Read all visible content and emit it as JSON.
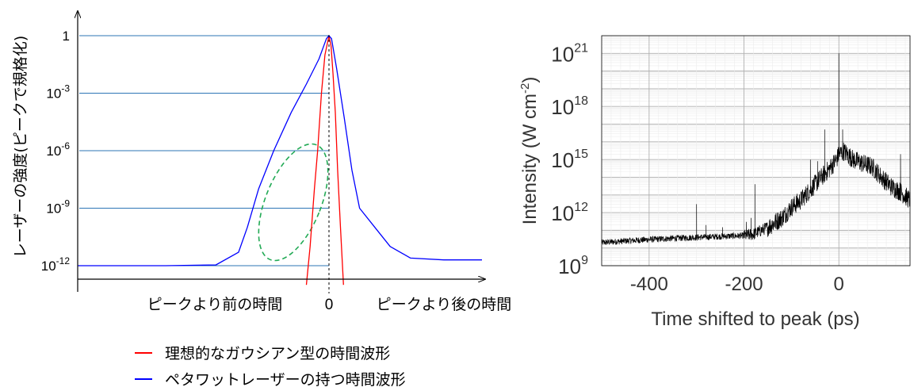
{
  "chart_data": [
    {
      "type": "line",
      "ylabel": "レーザーの強度(ピークで規格化)",
      "y_scale": "log",
      "ylim": [
        1e-13,
        10
      ],
      "xlim": [
        -1,
        0.6
      ],
      "y_ticks": [
        {
          "value": 1,
          "base": "1",
          "exp": ""
        },
        {
          "value": 0.001,
          "base": "10",
          "exp": "-3"
        },
        {
          "value": 1e-06,
          "base": "10",
          "exp": "-6"
        },
        {
          "value": 1e-09,
          "base": "10",
          "exp": "-9"
        },
        {
          "value": 1e-12,
          "base": "10",
          "exp": "-12"
        }
      ],
      "x_labels": {
        "before": "ピークより前の時間",
        "zero": "0",
        "after": "ピークより後の時間"
      },
      "series": [
        {
          "name": "理想的なガウシアン型の時間波形",
          "color": "#ff0000",
          "points": [
            [
              -0.09,
              1e-13
            ],
            [
              -0.075,
              1e-11
            ],
            [
              -0.058,
              1e-08
            ],
            [
              -0.045,
              1e-06
            ],
            [
              -0.03,
              0.001
            ],
            [
              -0.016,
              0.1
            ],
            [
              0,
              1
            ],
            [
              0.008,
              0.3
            ],
            [
              0.016,
              0.01
            ],
            [
              0.025,
              0.0001
            ],
            [
              0.034,
              1e-07
            ],
            [
              0.045,
              1e-10
            ],
            [
              0.057,
              1e-13
            ]
          ]
        },
        {
          "name": "ペタワットレーザーの持つ時間波形",
          "color": "#0000ff",
          "points": [
            [
              -1,
              1e-12
            ],
            [
              -0.65,
              1e-12
            ],
            [
              -0.45,
              1.1e-12
            ],
            [
              -0.36,
              5e-12
            ],
            [
              -0.325,
              1e-10
            ],
            [
              -0.28,
              1e-08
            ],
            [
              -0.22,
              1e-06
            ],
            [
              -0.15,
              0.0001
            ],
            [
              -0.09,
              0.003
            ],
            [
              -0.04,
              0.06
            ],
            [
              -0.01,
              0.7
            ],
            [
              0,
              1
            ],
            [
              0.01,
              0.7
            ],
            [
              0.03,
              0.02
            ],
            [
              0.06,
              5e-05
            ],
            [
              0.09,
              1e-07
            ],
            [
              0.12,
              1e-09
            ],
            [
              0.18,
              1e-10
            ],
            [
              0.24,
              1e-11
            ],
            [
              0.32,
              2.5e-12
            ],
            [
              0.45,
              2e-12
            ],
            [
              0.6,
              2e-12
            ]
          ]
        }
      ],
      "highlight": {
        "color": "#22aa55",
        "style": "dashed ellipse"
      }
    },
    {
      "type": "line",
      "xlabel": "Time shifted to peak (ps)",
      "ylabel_text": "Intensity (W cm",
      "ylabel_exp": "-2",
      "ylabel_close": ")",
      "y_scale": "log",
      "ylim": [
        1000000000.0,
        1e+22
      ],
      "xlim": [
        -500,
        150
      ],
      "x_ticks": [
        "-400",
        "-200",
        "0"
      ],
      "x_tick_values": [
        -400,
        -200,
        0
      ],
      "y_ticks": [
        {
          "value": 1000000000.0,
          "base": "10",
          "exp": "9"
        },
        {
          "value": 1000000000000.0,
          "base": "10",
          "exp": "12"
        },
        {
          "value": 1000000000000000.0,
          "base": "10",
          "exp": "15"
        },
        {
          "value": 1e+18,
          "base": "10",
          "exp": "18"
        },
        {
          "value": 1e+21,
          "base": "10",
          "exp": "21"
        }
      ],
      "grid": true,
      "series": [
        {
          "color": "#000000",
          "envelope": [
            [
              -500,
              20000000000.0
            ],
            [
              -450,
              25000000000.0
            ],
            [
              -400,
              30000000000.0
            ],
            [
              -350,
              35000000000.0
            ],
            [
              -300,
              40000000000.0
            ],
            [
              -250,
              45000000000.0
            ],
            [
              -200,
              50000000000.0
            ],
            [
              -180,
              60000000000.0
            ],
            [
              -150,
              150000000000.0
            ],
            [
              -120,
              500000000000.0
            ],
            [
              -100,
              2000000000000.0
            ],
            [
              -80,
              5000000000000.0
            ],
            [
              -60,
              20000000000000.0
            ],
            [
              -40,
              80000000000000.0
            ],
            [
              -20,
              300000000000000.0
            ],
            [
              -5,
              1000000000000000.0
            ],
            [
              0,
              2000000000000000.0
            ],
            [
              10,
              3000000000000000.0
            ],
            [
              30,
              1000000000000000.0
            ],
            [
              50,
              600000000000000.0
            ],
            [
              70,
              400000000000000.0
            ],
            [
              90,
              100000000000000.0
            ],
            [
              110,
              30000000000000.0
            ],
            [
              130,
              15000000000000.0
            ],
            [
              150,
              5000000000000.0
            ]
          ],
          "spikes": [
            [
              -300,
              3000000000000.0
            ],
            [
              -280,
              200000000000.0
            ],
            [
              -245,
              150000000000.0
            ],
            [
              -195,
              300000000000.0
            ],
            [
              -185,
              500000000000.0
            ],
            [
              -177,
              40000000000000.0
            ],
            [
              -60,
              1000000000000000.0
            ],
            [
              -45,
              800000000000000.0
            ],
            [
              -30,
              5e+16
            ],
            [
              0,
              1e+21
            ],
            [
              8,
              5e+16
            ],
            [
              25,
              3000000000000000.0
            ],
            [
              60,
              1000000000000000.0
            ],
            [
              130,
              2000000000000000.0
            ]
          ]
        }
      ]
    }
  ]
}
